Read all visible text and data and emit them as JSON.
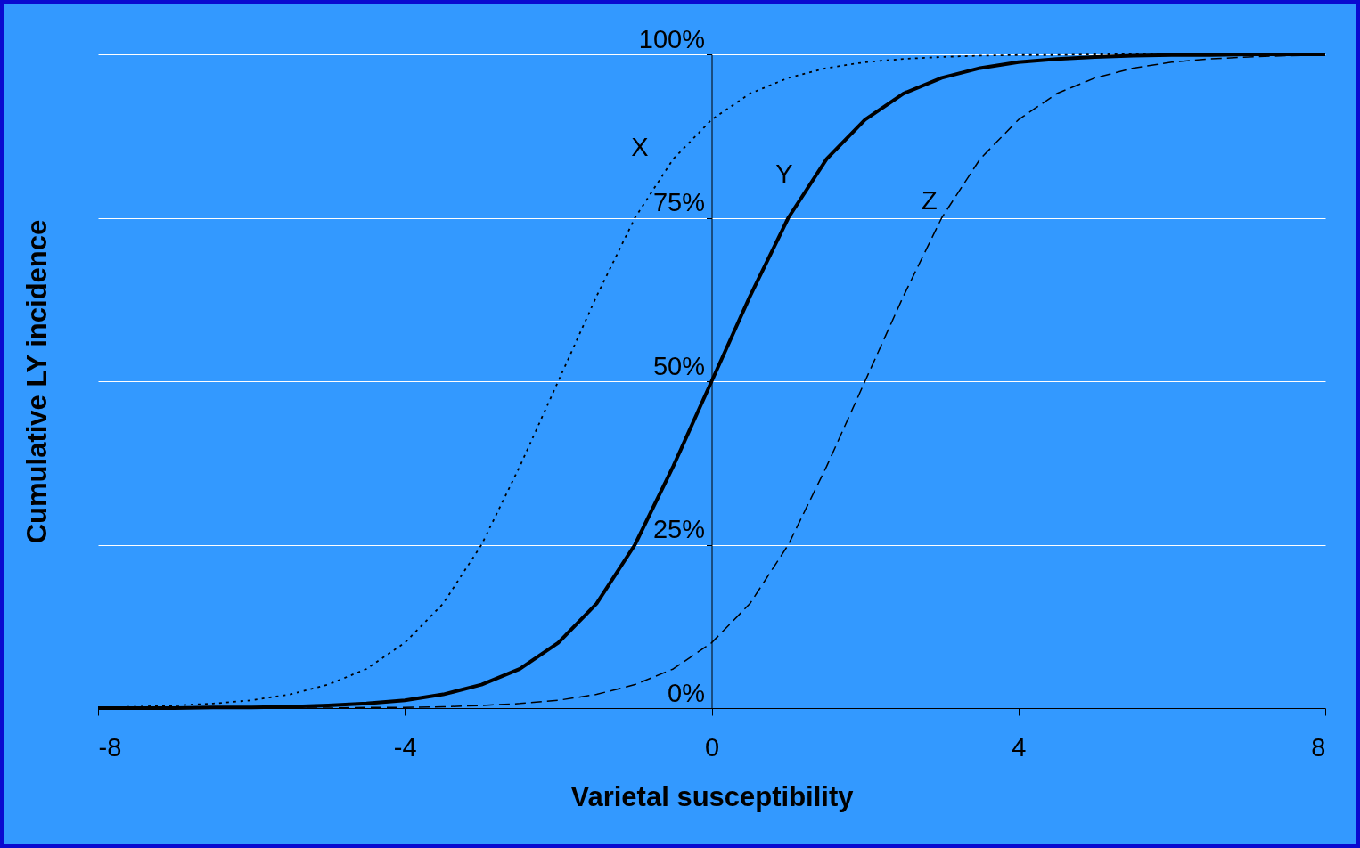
{
  "chart_data": {
    "type": "line",
    "xlabel": "Varietal susceptibility",
    "ylabel": "Cumulative LY incidence",
    "x": [
      -8,
      -7.5,
      -7,
      -6.5,
      -6,
      -5.5,
      -5,
      -4.5,
      -4,
      -3.5,
      -3,
      -2.5,
      -2,
      -1.5,
      -1,
      -0.5,
      0,
      0.5,
      1,
      1.5,
      2,
      2.5,
      3,
      3.5,
      4,
      4.5,
      5,
      5.5,
      6,
      6.5,
      7,
      7.5,
      8
    ],
    "series": [
      {
        "name": "X",
        "color": "#000000",
        "line_style": "dotted",
        "values": [
          0.1,
          0.2,
          0.4,
          0.7,
          1.2,
          2.1,
          3.6,
          6,
          10,
          16,
          25,
          37,
          50,
          63,
          75,
          84,
          90,
          94,
          96.4,
          97.9,
          98.8,
          99.3,
          99.6,
          99.8,
          99.9,
          99.9,
          100,
          100,
          100,
          100,
          100,
          100,
          100
        ]
      },
      {
        "name": "Y",
        "color": "#000000",
        "line_style": "solid",
        "values": [
          0,
          0,
          0,
          0.1,
          0.1,
          0.2,
          0.4,
          0.7,
          1.2,
          2.1,
          3.6,
          6,
          10,
          16,
          25,
          37,
          50,
          63,
          75,
          84,
          90,
          94,
          96.4,
          97.9,
          98.8,
          99.3,
          99.6,
          99.8,
          99.9,
          99.9,
          100,
          100,
          100
        ]
      },
      {
        "name": "Z",
        "color": "#000000",
        "line_style": "dashed",
        "values": [
          0,
          0,
          0,
          0,
          0,
          0,
          0,
          0.1,
          0.1,
          0.2,
          0.4,
          0.7,
          1.2,
          2.1,
          3.6,
          6,
          10,
          16,
          25,
          37,
          50,
          63,
          75,
          84,
          90,
          94,
          96.4,
          97.9,
          98.8,
          99.3,
          99.6,
          99.8,
          99.9
        ]
      }
    ],
    "xlim": [
      -8,
      8
    ],
    "xticks": [
      -8,
      -4,
      0,
      4,
      8
    ],
    "ylim": [
      0,
      100
    ],
    "yticks": [
      {
        "value": 0,
        "label": "0%"
      },
      {
        "value": 25,
        "label": "25%"
      },
      {
        "value": 50,
        "label": "50%"
      },
      {
        "value": 75,
        "label": "75%"
      },
      {
        "value": 100,
        "label": "100%"
      }
    ],
    "grid": "y",
    "marker": "none"
  }
}
